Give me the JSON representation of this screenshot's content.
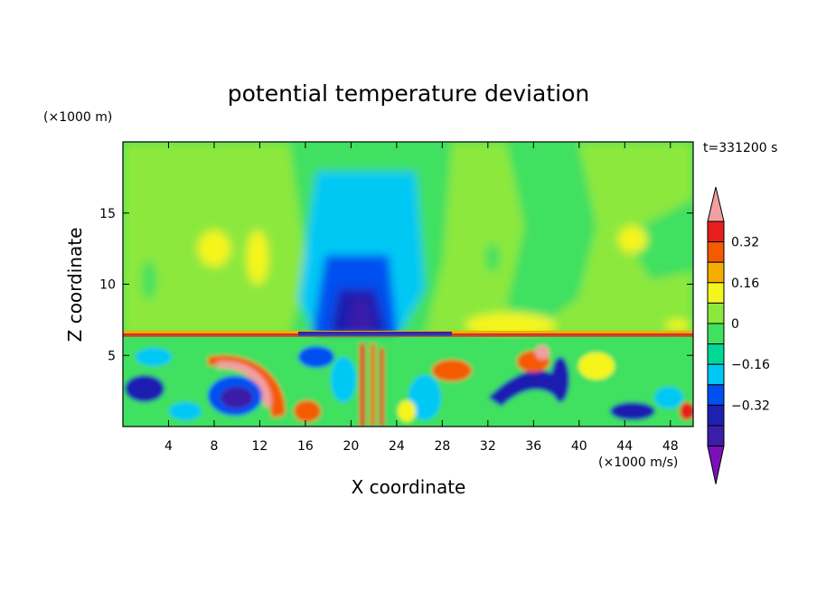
{
  "chart_data": {
    "type": "heatmap",
    "title": "potential temperature deviation",
    "xlabel": "X coordinate",
    "ylabel": "Z coordinate",
    "x_unit": "(×1000 m/s)",
    "y_unit": "(×1000 m)",
    "time_label": "t=331200 s",
    "xlim": [
      0,
      50
    ],
    "ylim": [
      0,
      20
    ],
    "x_ticks": [
      4,
      8,
      12,
      16,
      20,
      24,
      28,
      32,
      36,
      40,
      44,
      48
    ],
    "y_ticks": [
      5,
      10,
      15
    ],
    "colorbar": {
      "levels": [
        -0.48,
        -0.4,
        -0.32,
        -0.24,
        -0.16,
        -0.08,
        0,
        0.08,
        0.16,
        0.24,
        0.32,
        0.4
      ],
      "tick_labels": [
        "0.32",
        "0.16",
        "0",
        "−0.16",
        "−0.32"
      ],
      "tick_values": [
        0.32,
        0.16,
        0,
        -0.16,
        -0.32
      ],
      "colors": [
        "#7a10b8",
        "#3a1ea8",
        "#1f1fb0",
        "#0050f0",
        "#00c8f5",
        "#00d896",
        "#40e060",
        "#8ce83c",
        "#f5f51e",
        "#f5ad00",
        "#f55a00",
        "#e81e1e",
        "#f0a0a0"
      ],
      "extends": "both"
    },
    "features": [
      {
        "name": "upper cold column",
        "x": 21,
        "z_top": 18,
        "min_value": -0.4
      },
      {
        "name": "stratification level",
        "z": 6.4
      },
      {
        "name": "lower turbulent layer",
        "z_range": [
          0,
          6.4
        ]
      }
    ]
  }
}
